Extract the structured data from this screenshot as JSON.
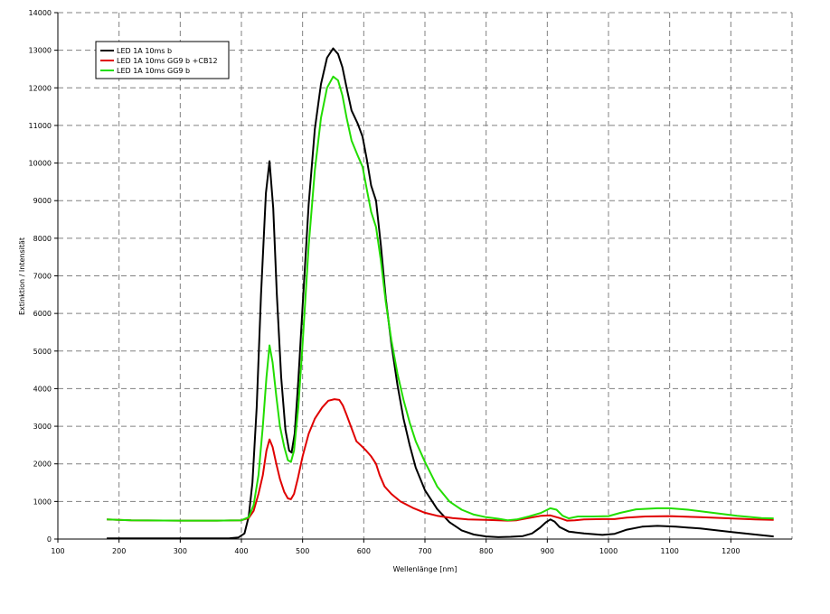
{
  "chart_data": {
    "type": "line",
    "title": "",
    "xlabel": "Wellenlänge [nm]",
    "ylabel": "Extinktion / Intensität",
    "xlim": [
      100,
      1300
    ],
    "ylim": [
      0,
      14000
    ],
    "x_ticks": [
      100,
      200,
      300,
      400,
      500,
      600,
      700,
      800,
      900,
      1000,
      1100,
      1200
    ],
    "y_ticks": [
      0,
      1000,
      2000,
      3000,
      4000,
      5000,
      6000,
      7000,
      8000,
      9000,
      10000,
      11000,
      12000,
      13000,
      14000
    ],
    "grid": true,
    "legend_position": "top-left",
    "series": [
      {
        "name": "LED 1A 10ms b",
        "color": "#000000",
        "points": [
          [
            180,
            20
          ],
          [
            300,
            20
          ],
          [
            380,
            20
          ],
          [
            395,
            40
          ],
          [
            405,
            150
          ],
          [
            412,
            600
          ],
          [
            418,
            1500
          ],
          [
            425,
            3500
          ],
          [
            432,
            6500
          ],
          [
            440,
            9200
          ],
          [
            446,
            10050
          ],
          [
            452,
            8800
          ],
          [
            458,
            6500
          ],
          [
            465,
            4300
          ],
          [
            472,
            2900
          ],
          [
            478,
            2350
          ],
          [
            482,
            2300
          ],
          [
            487,
            2800
          ],
          [
            493,
            4200
          ],
          [
            500,
            6200
          ],
          [
            510,
            8900
          ],
          [
            520,
            10900
          ],
          [
            530,
            12100
          ],
          [
            540,
            12800
          ],
          [
            550,
            13050
          ],
          [
            558,
            12900
          ],
          [
            565,
            12550
          ],
          [
            572,
            12000
          ],
          [
            580,
            11400
          ],
          [
            590,
            11050
          ],
          [
            598,
            10700
          ],
          [
            605,
            10100
          ],
          [
            612,
            9400
          ],
          [
            620,
            9000
          ],
          [
            628,
            7800
          ],
          [
            636,
            6400
          ],
          [
            645,
            5200
          ],
          [
            655,
            4100
          ],
          [
            665,
            3200
          ],
          [
            675,
            2500
          ],
          [
            685,
            1900
          ],
          [
            700,
            1300
          ],
          [
            720,
            800
          ],
          [
            740,
            450
          ],
          [
            760,
            230
          ],
          [
            780,
            120
          ],
          [
            800,
            70
          ],
          [
            820,
            50
          ],
          [
            840,
            60
          ],
          [
            860,
            80
          ],
          [
            875,
            150
          ],
          [
            888,
            300
          ],
          [
            898,
            450
          ],
          [
            905,
            520
          ],
          [
            912,
            460
          ],
          [
            920,
            320
          ],
          [
            935,
            200
          ],
          [
            960,
            150
          ],
          [
            990,
            110
          ],
          [
            1010,
            140
          ],
          [
            1030,
            250
          ],
          [
            1055,
            330
          ],
          [
            1080,
            350
          ],
          [
            1110,
            330
          ],
          [
            1150,
            280
          ],
          [
            1200,
            190
          ],
          [
            1240,
            120
          ],
          [
            1270,
            70
          ]
        ]
      },
      {
        "name": "LED 1A 10ms GG9 b +CB12",
        "color": "#e00000",
        "points": [
          [
            180,
            520
          ],
          [
            220,
            500
          ],
          [
            300,
            490
          ],
          [
            360,
            490
          ],
          [
            400,
            500
          ],
          [
            412,
            560
          ],
          [
            420,
            750
          ],
          [
            428,
            1200
          ],
          [
            435,
            1700
          ],
          [
            441,
            2350
          ],
          [
            446,
            2650
          ],
          [
            451,
            2450
          ],
          [
            457,
            2000
          ],
          [
            463,
            1600
          ],
          [
            470,
            1250
          ],
          [
            476,
            1080
          ],
          [
            481,
            1060
          ],
          [
            486,
            1200
          ],
          [
            492,
            1600
          ],
          [
            500,
            2200
          ],
          [
            510,
            2800
          ],
          [
            520,
            3200
          ],
          [
            532,
            3500
          ],
          [
            542,
            3680
          ],
          [
            552,
            3720
          ],
          [
            560,
            3700
          ],
          [
            566,
            3550
          ],
          [
            572,
            3300
          ],
          [
            580,
            2950
          ],
          [
            588,
            2600
          ],
          [
            596,
            2480
          ],
          [
            604,
            2350
          ],
          [
            612,
            2200
          ],
          [
            620,
            2000
          ],
          [
            626,
            1700
          ],
          [
            634,
            1400
          ],
          [
            645,
            1200
          ],
          [
            660,
            1000
          ],
          [
            680,
            830
          ],
          [
            700,
            700
          ],
          [
            720,
            620
          ],
          [
            745,
            560
          ],
          [
            770,
            520
          ],
          [
            800,
            510
          ],
          [
            820,
            500
          ],
          [
            835,
            490
          ],
          [
            850,
            500
          ],
          [
            870,
            560
          ],
          [
            890,
            620
          ],
          [
            905,
            630
          ],
          [
            920,
            560
          ],
          [
            932,
            490
          ],
          [
            945,
            500
          ],
          [
            960,
            520
          ],
          [
            990,
            530
          ],
          [
            1010,
            530
          ],
          [
            1030,
            570
          ],
          [
            1060,
            600
          ],
          [
            1100,
            610
          ],
          [
            1150,
            580
          ],
          [
            1200,
            550
          ],
          [
            1240,
            520
          ],
          [
            1270,
            510
          ]
        ]
      },
      {
        "name": "LED 1A 10ms GG9 b",
        "color": "#22dd00",
        "points": [
          [
            180,
            520
          ],
          [
            220,
            500
          ],
          [
            300,
            490
          ],
          [
            360,
            490
          ],
          [
            400,
            500
          ],
          [
            412,
            580
          ],
          [
            420,
            900
          ],
          [
            428,
            1700
          ],
          [
            435,
            3000
          ],
          [
            441,
            4300
          ],
          [
            446,
            5150
          ],
          [
            451,
            4700
          ],
          [
            457,
            3800
          ],
          [
            463,
            3000
          ],
          [
            470,
            2450
          ],
          [
            476,
            2100
          ],
          [
            481,
            2050
          ],
          [
            486,
            2350
          ],
          [
            493,
            3500
          ],
          [
            500,
            5200
          ],
          [
            510,
            7800
          ],
          [
            520,
            9800
          ],
          [
            530,
            11200
          ],
          [
            540,
            12000
          ],
          [
            550,
            12300
          ],
          [
            558,
            12200
          ],
          [
            565,
            11800
          ],
          [
            572,
            11200
          ],
          [
            580,
            10600
          ],
          [
            590,
            10200
          ],
          [
            598,
            9900
          ],
          [
            605,
            9300
          ],
          [
            612,
            8700
          ],
          [
            620,
            8300
          ],
          [
            628,
            7400
          ],
          [
            636,
            6300
          ],
          [
            645,
            5300
          ],
          [
            655,
            4400
          ],
          [
            665,
            3700
          ],
          [
            675,
            3100
          ],
          [
            685,
            2600
          ],
          [
            700,
            2050
          ],
          [
            720,
            1400
          ],
          [
            740,
            1000
          ],
          [
            760,
            780
          ],
          [
            780,
            650
          ],
          [
            800,
            580
          ],
          [
            820,
            540
          ],
          [
            835,
            500
          ],
          [
            850,
            520
          ],
          [
            870,
            600
          ],
          [
            890,
            700
          ],
          [
            905,
            820
          ],
          [
            915,
            780
          ],
          [
            925,
            620
          ],
          [
            935,
            550
          ],
          [
            950,
            600
          ],
          [
            975,
            600
          ],
          [
            1000,
            610
          ],
          [
            1020,
            700
          ],
          [
            1045,
            790
          ],
          [
            1080,
            820
          ],
          [
            1100,
            820
          ],
          [
            1130,
            780
          ],
          [
            1170,
            700
          ],
          [
            1210,
            620
          ],
          [
            1250,
            560
          ],
          [
            1270,
            550
          ]
        ]
      }
    ]
  }
}
